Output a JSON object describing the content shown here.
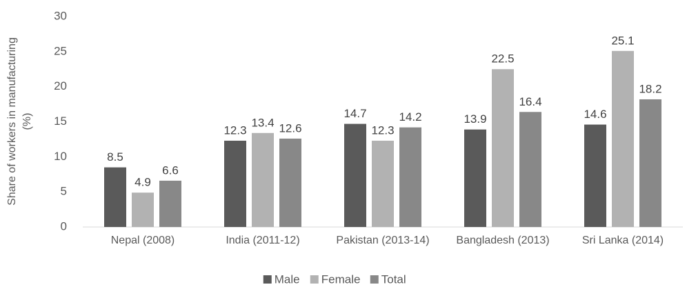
{
  "chart_data": {
    "type": "bar",
    "y_label": [
      "Share of workers in manufacturing",
      "(%)"
    ],
    "categories": [
      "Nepal (2008)",
      "India (2011-12)",
      "Pakistan (2013-14)",
      "Bangladesh (2013)",
      "Sri Lanka (2014)"
    ],
    "series": [
      {
        "name": "Male",
        "color": "#5a5a5a",
        "values": [
          8.5,
          12.3,
          14.7,
          13.9,
          14.6
        ]
      },
      {
        "name": "Female",
        "color": "#b2b2b2",
        "values": [
          4.9,
          13.4,
          12.3,
          22.5,
          25.1
        ]
      },
      {
        "name": "Total",
        "color": "#888888",
        "values": [
          6.6,
          12.6,
          14.2,
          16.4,
          18.2
        ]
      }
    ],
    "ylim": [
      0,
      30
    ],
    "yticks": [
      0,
      5,
      10,
      15,
      20,
      25,
      30
    ],
    "grid": false,
    "legend": "bottom"
  }
}
